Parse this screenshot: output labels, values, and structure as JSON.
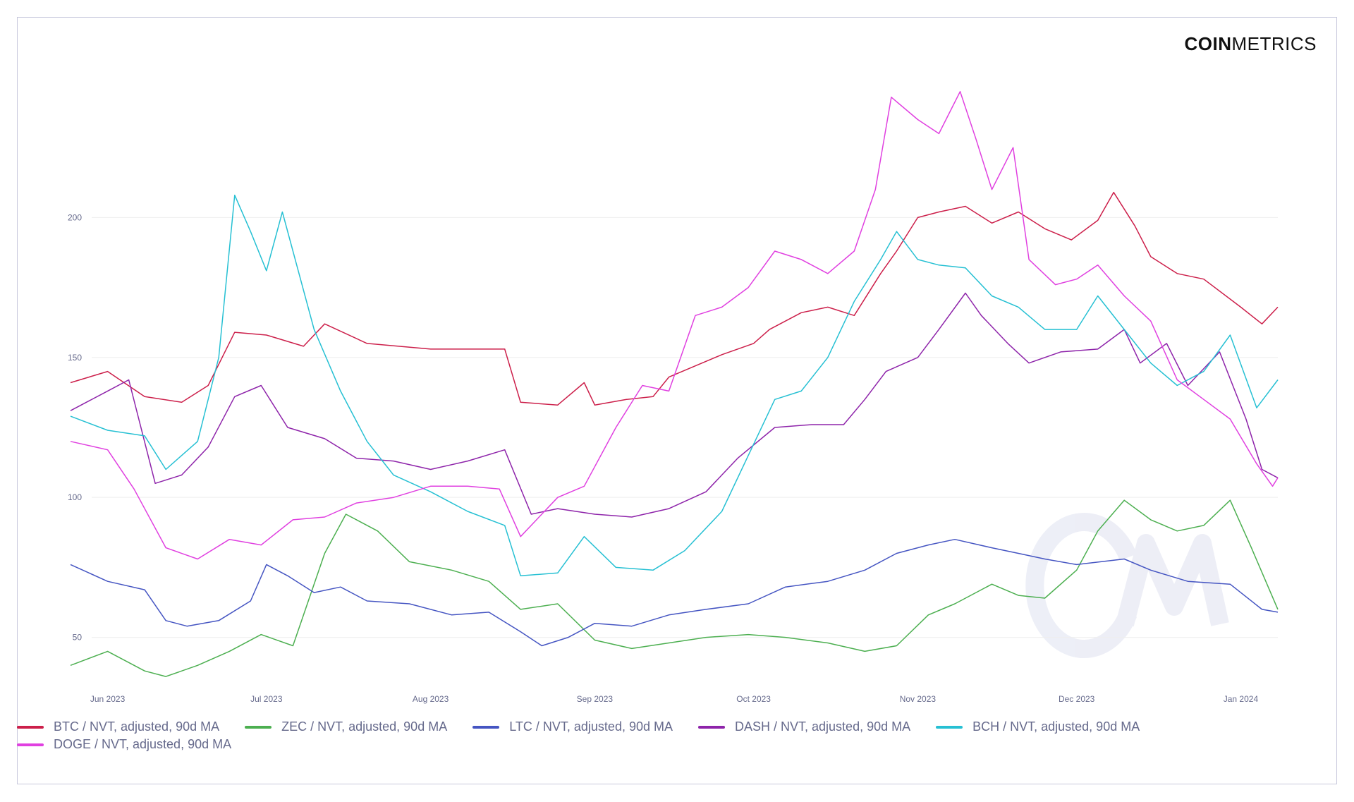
{
  "brand": {
    "bold": "COIN",
    "light": "METRICS"
  },
  "colors": {
    "BTC": "#cc1f4a",
    "ZEC": "#4caf50",
    "LTC": "#4555c2",
    "DASH": "#8e24aa",
    "BCH": "#26c0d3",
    "DOGE": "#e040e0",
    "grid": "#eeeeee",
    "watermark": "#e6e8f3"
  },
  "chart_data": {
    "type": "line",
    "x_axis": {
      "type": "date",
      "range": [
        "2023-05-25",
        "2024-01-08"
      ],
      "ticks": [
        "Jun 2023",
        "Jul 2023",
        "Aug 2023",
        "Sep 2023",
        "Oct 2023",
        "Nov 2023",
        "Dec 2023",
        "Jan 2024"
      ]
    },
    "y_axis": {
      "range": [
        32,
        250
      ],
      "ticks": [
        50,
        100,
        150,
        200
      ]
    },
    "grid": true,
    "legend_position": "bottom-left",
    "series": [
      {
        "name": "BTC / NVT, adjusted, 90d MA",
        "color": "#cc1f4a",
        "points": [
          [
            "2023-05-25",
            141
          ],
          [
            "2023-06-01",
            145
          ],
          [
            "2023-06-08",
            136
          ],
          [
            "2023-06-15",
            134
          ],
          [
            "2023-06-20",
            140
          ],
          [
            "2023-06-25",
            159
          ],
          [
            "2023-07-01",
            158
          ],
          [
            "2023-07-08",
            154
          ],
          [
            "2023-07-12",
            162
          ],
          [
            "2023-07-20",
            155
          ],
          [
            "2023-08-01",
            153
          ],
          [
            "2023-08-10",
            153
          ],
          [
            "2023-08-15",
            153
          ],
          [
            "2023-08-18",
            134
          ],
          [
            "2023-08-25",
            133
          ],
          [
            "2023-08-30",
            141
          ],
          [
            "2023-09-01",
            133
          ],
          [
            "2023-09-07",
            135
          ],
          [
            "2023-09-12",
            136
          ],
          [
            "2023-09-15",
            143
          ],
          [
            "2023-09-20",
            147
          ],
          [
            "2023-09-25",
            151
          ],
          [
            "2023-10-01",
            155
          ],
          [
            "2023-10-04",
            160
          ],
          [
            "2023-10-10",
            166
          ],
          [
            "2023-10-15",
            168
          ],
          [
            "2023-10-20",
            165
          ],
          [
            "2023-10-25",
            180
          ],
          [
            "2023-10-28",
            188
          ],
          [
            "2023-11-01",
            200
          ],
          [
            "2023-11-05",
            202
          ],
          [
            "2023-11-10",
            204
          ],
          [
            "2023-11-15",
            198
          ],
          [
            "2023-11-20",
            202
          ],
          [
            "2023-11-25",
            196
          ],
          [
            "2023-11-30",
            192
          ],
          [
            "2023-12-05",
            199
          ],
          [
            "2023-12-08",
            209
          ],
          [
            "2023-12-12",
            197
          ],
          [
            "2023-12-15",
            186
          ],
          [
            "2023-12-20",
            180
          ],
          [
            "2023-12-25",
            178
          ],
          [
            "2024-01-01",
            168
          ],
          [
            "2024-01-05",
            162
          ],
          [
            "2024-01-08",
            168
          ]
        ]
      },
      {
        "name": "ZEC / NVT, adjusted, 90d MA",
        "color": "#4caf50",
        "points": [
          [
            "2023-05-25",
            40
          ],
          [
            "2023-06-01",
            45
          ],
          [
            "2023-06-08",
            38
          ],
          [
            "2023-06-12",
            36
          ],
          [
            "2023-06-18",
            40
          ],
          [
            "2023-06-24",
            45
          ],
          [
            "2023-06-30",
            51
          ],
          [
            "2023-07-06",
            47
          ],
          [
            "2023-07-12",
            80
          ],
          [
            "2023-07-16",
            94
          ],
          [
            "2023-07-22",
            88
          ],
          [
            "2023-07-28",
            77
          ],
          [
            "2023-08-05",
            74
          ],
          [
            "2023-08-12",
            70
          ],
          [
            "2023-08-18",
            60
          ],
          [
            "2023-08-25",
            62
          ],
          [
            "2023-09-01",
            49
          ],
          [
            "2023-09-08",
            46
          ],
          [
            "2023-09-15",
            48
          ],
          [
            "2023-09-22",
            50
          ],
          [
            "2023-09-30",
            51
          ],
          [
            "2023-10-07",
            50
          ],
          [
            "2023-10-15",
            48
          ],
          [
            "2023-10-22",
            45
          ],
          [
            "2023-10-28",
            47
          ],
          [
            "2023-11-03",
            58
          ],
          [
            "2023-11-08",
            62
          ],
          [
            "2023-11-15",
            69
          ],
          [
            "2023-11-20",
            65
          ],
          [
            "2023-11-25",
            64
          ],
          [
            "2023-12-01",
            74
          ],
          [
            "2023-12-05",
            88
          ],
          [
            "2023-12-10",
            99
          ],
          [
            "2023-12-15",
            92
          ],
          [
            "2023-12-20",
            88
          ],
          [
            "2023-12-25",
            90
          ],
          [
            "2023-12-30",
            99
          ],
          [
            "2024-01-03",
            82
          ],
          [
            "2024-01-08",
            60
          ]
        ]
      },
      {
        "name": "LTC / NVT, adjusted, 90d MA",
        "color": "#4555c2",
        "points": [
          [
            "2023-05-25",
            76
          ],
          [
            "2023-06-01",
            70
          ],
          [
            "2023-06-08",
            67
          ],
          [
            "2023-06-12",
            56
          ],
          [
            "2023-06-16",
            54
          ],
          [
            "2023-06-22",
            56
          ],
          [
            "2023-06-28",
            63
          ],
          [
            "2023-07-01",
            76
          ],
          [
            "2023-07-05",
            72
          ],
          [
            "2023-07-10",
            66
          ],
          [
            "2023-07-15",
            68
          ],
          [
            "2023-07-20",
            63
          ],
          [
            "2023-07-28",
            62
          ],
          [
            "2023-08-05",
            58
          ],
          [
            "2023-08-12",
            59
          ],
          [
            "2023-08-18",
            52
          ],
          [
            "2023-08-22",
            47
          ],
          [
            "2023-08-27",
            50
          ],
          [
            "2023-09-01",
            55
          ],
          [
            "2023-09-08",
            54
          ],
          [
            "2023-09-15",
            58
          ],
          [
            "2023-09-22",
            60
          ],
          [
            "2023-09-30",
            62
          ],
          [
            "2023-10-07",
            68
          ],
          [
            "2023-10-15",
            70
          ],
          [
            "2023-10-22",
            74
          ],
          [
            "2023-10-28",
            80
          ],
          [
            "2023-11-03",
            83
          ],
          [
            "2023-11-08",
            85
          ],
          [
            "2023-11-15",
            82
          ],
          [
            "2023-11-20",
            80
          ],
          [
            "2023-11-25",
            78
          ],
          [
            "2023-12-01",
            76
          ],
          [
            "2023-12-10",
            78
          ],
          [
            "2023-12-15",
            74
          ],
          [
            "2023-12-22",
            70
          ],
          [
            "2023-12-30",
            69
          ],
          [
            "2024-01-05",
            60
          ],
          [
            "2024-01-08",
            59
          ]
        ]
      },
      {
        "name": "DASH / NVT, adjusted, 90d MA",
        "color": "#8e24aa",
        "points": [
          [
            "2023-05-25",
            131
          ],
          [
            "2023-06-01",
            138
          ],
          [
            "2023-06-05",
            142
          ],
          [
            "2023-06-10",
            105
          ],
          [
            "2023-06-15",
            108
          ],
          [
            "2023-06-20",
            118
          ],
          [
            "2023-06-25",
            136
          ],
          [
            "2023-06-30",
            140
          ],
          [
            "2023-07-05",
            125
          ],
          [
            "2023-07-12",
            121
          ],
          [
            "2023-07-18",
            114
          ],
          [
            "2023-07-25",
            113
          ],
          [
            "2023-08-01",
            110
          ],
          [
            "2023-08-08",
            113
          ],
          [
            "2023-08-15",
            117
          ],
          [
            "2023-08-20",
            94
          ],
          [
            "2023-08-25",
            96
          ],
          [
            "2023-09-01",
            94
          ],
          [
            "2023-09-08",
            93
          ],
          [
            "2023-09-15",
            96
          ],
          [
            "2023-09-22",
            102
          ],
          [
            "2023-09-28",
            114
          ],
          [
            "2023-10-05",
            125
          ],
          [
            "2023-10-12",
            126
          ],
          [
            "2023-10-18",
            126
          ],
          [
            "2023-10-22",
            135
          ],
          [
            "2023-10-26",
            145
          ],
          [
            "2023-11-01",
            150
          ],
          [
            "2023-11-05",
            160
          ],
          [
            "2023-11-10",
            173
          ],
          [
            "2023-11-13",
            165
          ],
          [
            "2023-11-18",
            155
          ],
          [
            "2023-11-22",
            148
          ],
          [
            "2023-11-28",
            152
          ],
          [
            "2023-12-05",
            153
          ],
          [
            "2023-12-10",
            160
          ],
          [
            "2023-12-13",
            148
          ],
          [
            "2023-12-18",
            155
          ],
          [
            "2023-12-22",
            140
          ],
          [
            "2023-12-28",
            152
          ],
          [
            "2024-01-02",
            128
          ],
          [
            "2024-01-05",
            110
          ],
          [
            "2024-01-08",
            107
          ]
        ]
      },
      {
        "name": "BCH / NVT, adjusted, 90d MA",
        "color": "#26c0d3",
        "points": [
          [
            "2023-05-25",
            129
          ],
          [
            "2023-06-01",
            124
          ],
          [
            "2023-06-08",
            122
          ],
          [
            "2023-06-12",
            110
          ],
          [
            "2023-06-18",
            120
          ],
          [
            "2023-06-22",
            150
          ],
          [
            "2023-06-25",
            208
          ],
          [
            "2023-06-28",
            195
          ],
          [
            "2023-07-01",
            181
          ],
          [
            "2023-07-04",
            202
          ],
          [
            "2023-07-10",
            160
          ],
          [
            "2023-07-15",
            138
          ],
          [
            "2023-07-20",
            120
          ],
          [
            "2023-07-25",
            108
          ],
          [
            "2023-08-01",
            102
          ],
          [
            "2023-08-08",
            95
          ],
          [
            "2023-08-15",
            90
          ],
          [
            "2023-08-18",
            72
          ],
          [
            "2023-08-25",
            73
          ],
          [
            "2023-08-30",
            86
          ],
          [
            "2023-09-05",
            75
          ],
          [
            "2023-09-12",
            74
          ],
          [
            "2023-09-18",
            81
          ],
          [
            "2023-09-25",
            95
          ],
          [
            "2023-09-30",
            115
          ],
          [
            "2023-10-05",
            135
          ],
          [
            "2023-10-10",
            138
          ],
          [
            "2023-10-15",
            150
          ],
          [
            "2023-10-20",
            170
          ],
          [
            "2023-10-25",
            185
          ],
          [
            "2023-10-28",
            195
          ],
          [
            "2023-11-01",
            185
          ],
          [
            "2023-11-05",
            183
          ],
          [
            "2023-11-10",
            182
          ],
          [
            "2023-11-15",
            172
          ],
          [
            "2023-11-20",
            168
          ],
          [
            "2023-11-25",
            160
          ],
          [
            "2023-12-01",
            160
          ],
          [
            "2023-12-05",
            172
          ],
          [
            "2023-12-10",
            160
          ],
          [
            "2023-12-15",
            148
          ],
          [
            "2023-12-20",
            140
          ],
          [
            "2023-12-25",
            145
          ],
          [
            "2023-12-30",
            158
          ],
          [
            "2024-01-04",
            132
          ],
          [
            "2024-01-08",
            142
          ]
        ]
      },
      {
        "name": "DOGE / NVT, adjusted, 90d MA",
        "color": "#e040e0",
        "points": [
          [
            "2023-05-25",
            120
          ],
          [
            "2023-06-01",
            117
          ],
          [
            "2023-06-06",
            103
          ],
          [
            "2023-06-12",
            82
          ],
          [
            "2023-06-18",
            78
          ],
          [
            "2023-06-24",
            85
          ],
          [
            "2023-06-30",
            83
          ],
          [
            "2023-07-06",
            92
          ],
          [
            "2023-07-12",
            93
          ],
          [
            "2023-07-18",
            98
          ],
          [
            "2023-07-25",
            100
          ],
          [
            "2023-08-01",
            104
          ],
          [
            "2023-08-08",
            104
          ],
          [
            "2023-08-14",
            103
          ],
          [
            "2023-08-18",
            86
          ],
          [
            "2023-08-25",
            100
          ],
          [
            "2023-08-30",
            104
          ],
          [
            "2023-09-05",
            125
          ],
          [
            "2023-09-10",
            140
          ],
          [
            "2023-09-15",
            138
          ],
          [
            "2023-09-20",
            165
          ],
          [
            "2023-09-25",
            168
          ],
          [
            "2023-09-30",
            175
          ],
          [
            "2023-10-05",
            188
          ],
          [
            "2023-10-10",
            185
          ],
          [
            "2023-10-15",
            180
          ],
          [
            "2023-10-20",
            188
          ],
          [
            "2023-10-24",
            210
          ],
          [
            "2023-10-27",
            243
          ],
          [
            "2023-11-01",
            235
          ],
          [
            "2023-11-05",
            230
          ],
          [
            "2023-11-09",
            245
          ],
          [
            "2023-11-12",
            228
          ],
          [
            "2023-11-15",
            210
          ],
          [
            "2023-11-19",
            225
          ],
          [
            "2023-11-22",
            185
          ],
          [
            "2023-11-27",
            176
          ],
          [
            "2023-12-01",
            178
          ],
          [
            "2023-12-05",
            183
          ],
          [
            "2023-12-10",
            172
          ],
          [
            "2023-12-15",
            163
          ],
          [
            "2023-12-20",
            142
          ],
          [
            "2023-12-25",
            135
          ],
          [
            "2023-12-30",
            128
          ],
          [
            "2024-01-04",
            112
          ],
          [
            "2024-01-07",
            104
          ],
          [
            "2024-01-08",
            107
          ]
        ]
      }
    ]
  }
}
